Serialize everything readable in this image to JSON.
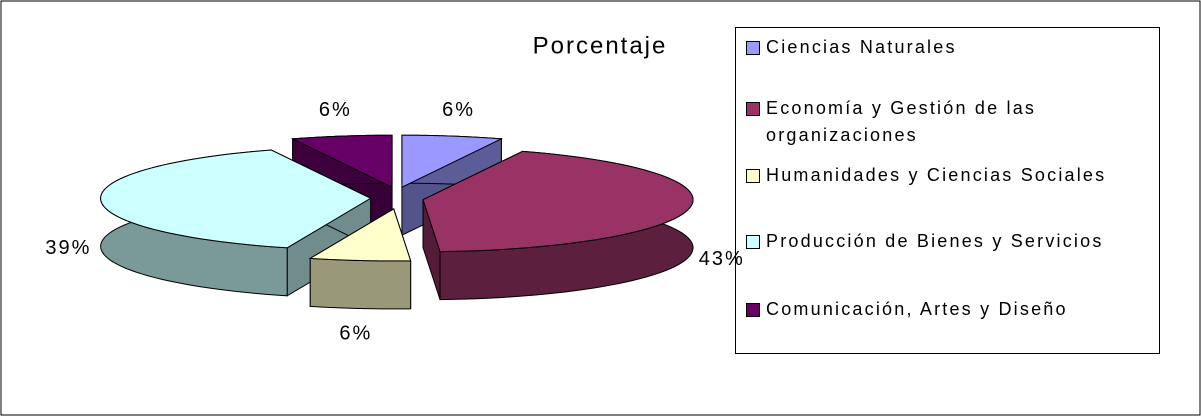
{
  "chart_data": {
    "type": "pie",
    "title": "Porcentaje",
    "series": [
      {
        "name": "Ciencias Naturales",
        "color": "#9999ff"
      },
      {
        "name": "Economía y Gestión de las organizaciones",
        "color": "#993366"
      },
      {
        "name": "Humanidades y Ciencias Sociales",
        "color": "#ffffcc"
      },
      {
        "name": "Producción de Bienes y Servicios",
        "color": "#ccffff"
      },
      {
        "name": "Comunicación, Artes y Diseño",
        "color": "#660066"
      }
    ],
    "values": [
      6,
      43,
      6,
      39,
      6
    ],
    "value_labels": [
      "6%",
      "43%",
      "6%",
      "39%",
      "6%"
    ],
    "legend": "right"
  }
}
